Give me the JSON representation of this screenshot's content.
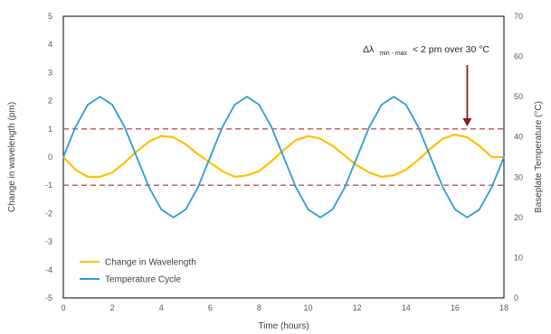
{
  "chart_data": {
    "type": "line",
    "x_axis": {
      "label": "Time (hours)",
      "min": 0,
      "max": 18,
      "ticks": [
        "0",
        "2",
        "4",
        "6",
        "8",
        "10",
        "12",
        "14",
        "16",
        "18"
      ]
    },
    "y_left": {
      "label": "Change in wavelength (pm)",
      "min": -5,
      "max": 5,
      "ticks": [
        "-5",
        "-4",
        "-3",
        "-2",
        "-1",
        "0",
        "1",
        "2",
        "3",
        "4",
        "5"
      ]
    },
    "y_right": {
      "label": "Baseplate Temperature (°C)",
      "min": 0,
      "max": 70,
      "ticks": [
        "0",
        "10",
        "20",
        "30",
        "40",
        "50",
        "60",
        "70"
      ]
    },
    "series": [
      {
        "name": "Change in Wavelength",
        "axis": "left",
        "color": "#ffc000",
        "x": [
          0,
          0.5,
          1,
          1.5,
          2,
          2.5,
          3,
          3.5,
          4,
          4.5,
          5,
          5.5,
          6,
          6.5,
          7,
          7.5,
          8,
          8.5,
          9,
          9.5,
          10,
          10.5,
          11,
          11.5,
          12,
          12.5,
          13,
          13.5,
          14,
          14.5,
          15,
          15.5,
          16,
          16.5,
          17,
          17.5,
          18
        ],
        "y": [
          0,
          -0.45,
          -0.7,
          -0.7,
          -0.55,
          -0.2,
          0.2,
          0.55,
          0.75,
          0.7,
          0.45,
          0.1,
          -0.2,
          -0.5,
          -0.7,
          -0.65,
          -0.5,
          -0.15,
          0.25,
          0.6,
          0.75,
          0.65,
          0.4,
          0.05,
          -0.3,
          -0.55,
          -0.7,
          -0.65,
          -0.45,
          -0.1,
          0.3,
          0.65,
          0.8,
          0.7,
          0.4,
          0,
          0
        ]
      },
      {
        "name": "Temperature Cycle",
        "axis": "right",
        "color": "#2e9bd6",
        "x": [
          0,
          0.5,
          1,
          1.5,
          2,
          2.5,
          3,
          3.5,
          4,
          4.5,
          5,
          5.5,
          6,
          6.5,
          7,
          7.5,
          8,
          8.5,
          9,
          9.5,
          10,
          10.5,
          11,
          11.5,
          12,
          12.5,
          13,
          13.5,
          14,
          14.5,
          15,
          15.5,
          16,
          16.5,
          17,
          17.5,
          18
        ],
        "y": [
          35,
          42.5,
          48,
          50,
          48,
          42.5,
          35,
          27.5,
          22,
          20,
          22,
          27.5,
          35,
          42.5,
          48,
          50,
          48,
          42.5,
          35,
          27.5,
          22,
          20,
          22,
          27.5,
          35,
          42.5,
          48,
          50,
          48,
          42.5,
          35,
          27.5,
          22,
          20,
          22,
          27.5,
          35
        ]
      }
    ],
    "reference_lines": [
      {
        "axis": "left",
        "value": 1,
        "color": "#c0504d",
        "style": "dashed"
      },
      {
        "axis": "left",
        "value": -1,
        "color": "#c0504d",
        "style": "dashed"
      }
    ],
    "annotation": {
      "symbol": "Δλ",
      "subscript": "min - max",
      "text": "< 2 pm over 30 °C",
      "x": 16.5,
      "arrow_color": "#8b1a1a"
    },
    "legend_position": "bottom-left",
    "grid": false
  }
}
